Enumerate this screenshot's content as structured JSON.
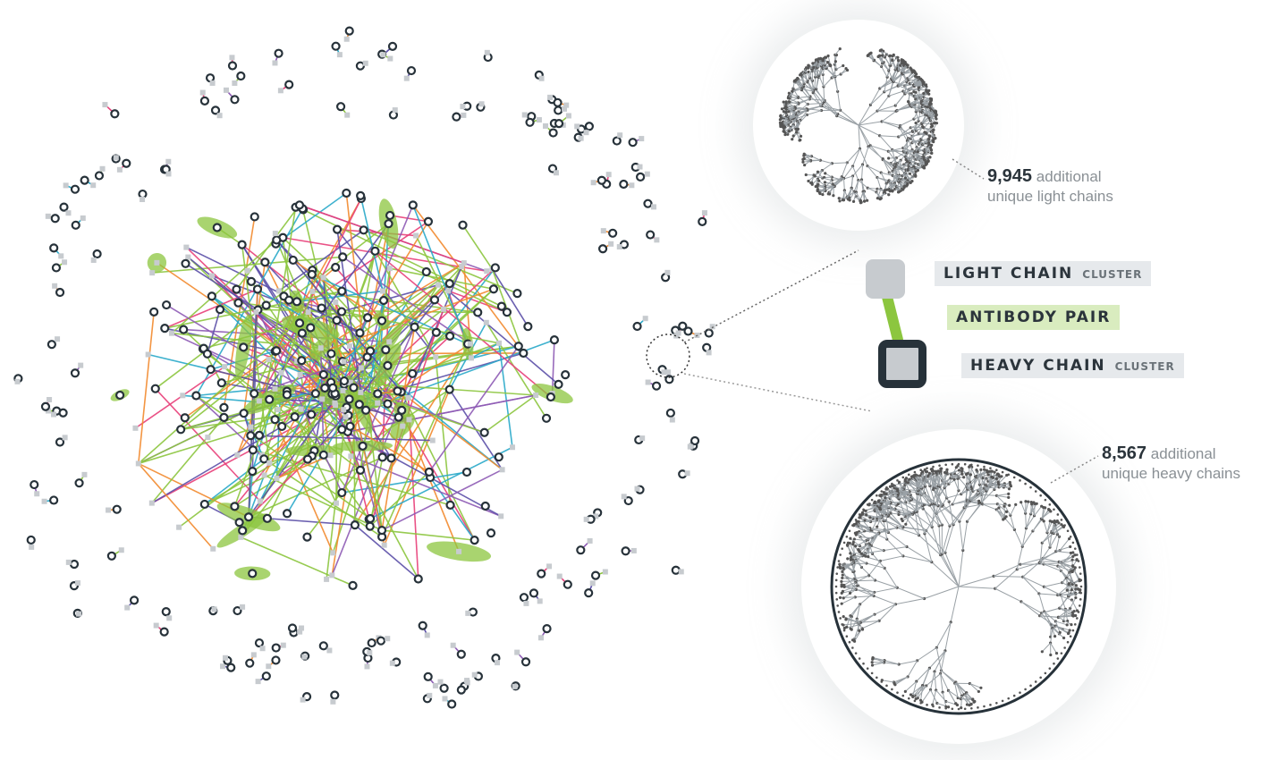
{
  "legend": {
    "light_chain": {
      "label": "LIGHT CHAIN",
      "suffix": "CLUSTER"
    },
    "antibody_pair": {
      "label": "ANTIBODY PAIR"
    },
    "heavy_chain": {
      "label": "HEAVY CHAIN",
      "suffix": "CLUSTER"
    }
  },
  "callouts": {
    "light": {
      "count": "9,945",
      "line1": "additional",
      "line2": "unique light chains"
    },
    "heavy": {
      "count": "8,567",
      "line1": "additional",
      "line2": "unique heavy chains"
    }
  },
  "colors": {
    "heavy_node": "#27323a",
    "light_node": "#c7cbcf",
    "pair_edge": "#8cc63f",
    "edge_palette": [
      "#8cc63f",
      "#5b4fa8",
      "#8e5bb5",
      "#e8407a",
      "#29a9c9",
      "#f28a2e",
      "#8cc63f",
      "#8cc63f"
    ]
  }
}
